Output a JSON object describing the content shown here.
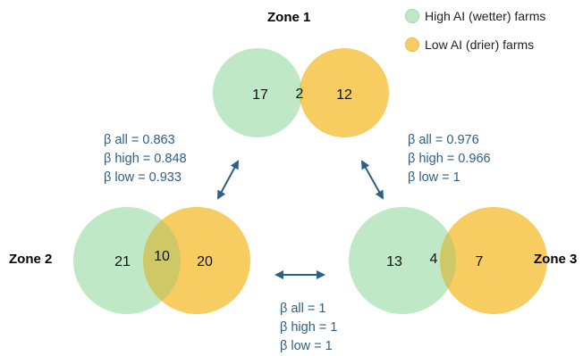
{
  "legend": [
    {
      "label": "High AI (wetter) farms",
      "color": "#bfe9c6",
      "border": "#9fd9aa"
    },
    {
      "label": "Low AI (drier) farms",
      "color": "#f7cc60",
      "border": "#e6b84c"
    }
  ],
  "colors": {
    "high": "#bfe9c6",
    "low": "#f7cc60",
    "overlap": "#cfc866",
    "arrow": "#2e5f86"
  },
  "zones": [
    {
      "title": "Zone 1",
      "high_only": "17",
      "shared": "2",
      "low_only": "12"
    },
    {
      "title": "Zone 2",
      "high_only": "21",
      "shared": "10",
      "low_only": "20"
    },
    {
      "title": "Zone 3",
      "high_only": "13",
      "shared": "4",
      "low_only": "7"
    }
  ],
  "comparisons": [
    {
      "pair": "Zone 1 – Zone 2",
      "all": "β all = 0.863",
      "high": "β high = 0.848",
      "low": "β low = 0.933"
    },
    {
      "pair": "Zone 1 – Zone 3",
      "all": "β all = 0.976",
      "high": "β high = 0.966",
      "low": "β low = 1"
    },
    {
      "pair": "Zone 2 – Zone 3",
      "all": "β all = 1",
      "high": "β high = 1",
      "low": "β low = 1"
    }
  ]
}
